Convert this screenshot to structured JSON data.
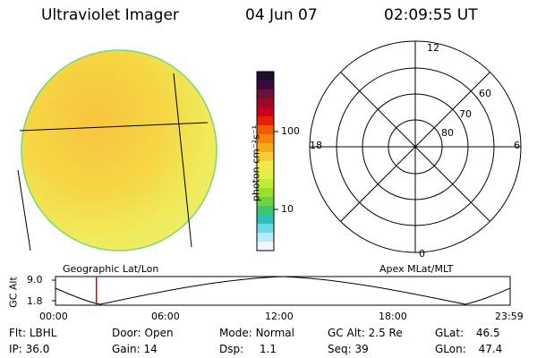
{
  "header": {
    "title": "Ultraviolet Imager",
    "date": "04 Jun 07",
    "time": "02:09:55 UT"
  },
  "colorbar": {
    "unit_label": "photon cm⁻²s⁻¹",
    "ticks": [
      "100",
      "10"
    ],
    "colors": [
      "#1a0f2e",
      "#3b0a3a",
      "#6b0f3d",
      "#9a0a26",
      "#c8001e",
      "#e81e0a",
      "#f05a00",
      "#f5860a",
      "#f8a91b",
      "#f5cd3c",
      "#f2e84a",
      "#e1f04a",
      "#c2ec35",
      "#98e02c",
      "#6fd23a",
      "#3fc66d",
      "#2ac4b4",
      "#6fd8e8",
      "#b6ecf6",
      "#ebf7fb"
    ]
  },
  "polar_grid": {
    "mlt_labels": [
      "12",
      "18",
      "6",
      "0"
    ],
    "lat_labels": [
      "60",
      "70",
      "80"
    ]
  },
  "timeline": {
    "left_label": "Geographic Lat/Lon",
    "right_label": "Apex MLat/MLT",
    "axis_title": "GC Alt",
    "y_ticks": [
      "9.0",
      "1.8"
    ],
    "x_ticks": [
      "00:00",
      "06:00",
      "12:00",
      "18:00",
      "23:59"
    ],
    "current_marker_hours": 2.16
  },
  "info": {
    "row1": [
      {
        "label": "Flt:",
        "value": "LBHL"
      },
      {
        "label": "Door:",
        "value": "Open"
      },
      {
        "label": "Mode:",
        "value": "Normal"
      },
      {
        "label": "GC Alt:",
        "value": "2.5 Re"
      },
      {
        "label": "GLat:",
        "value": "46.5"
      }
    ],
    "row2": [
      {
        "label": "IP:",
        "value": "36.0"
      },
      {
        "label": "Gain:",
        "value": "14"
      },
      {
        "label": "Dsp:",
        "value": "1.1"
      },
      {
        "label": "Seq:",
        "value": "39"
      },
      {
        "label": "GLon:",
        "value": "47.4"
      }
    ]
  }
}
